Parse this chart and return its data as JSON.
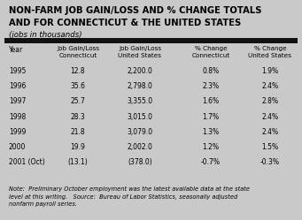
{
  "title_line1": "NON-FARM JOB GAIN/LOSS AND % CHANGE TOTALS",
  "title_line2": "AND FOR CONNECTICUT & THE UNITED STATES",
  "subtitle": "(jobs in thousands)",
  "bg_color": "#c9c9c9",
  "header_bar_color": "#111111",
  "col_headers": [
    "Job Gain/Loss\nConnecticut",
    "Job Gain/Loss\nUnited States",
    "% Change\nConnecticut",
    "% Change\nUnited States"
  ],
  "year_col_header": "Year",
  "years": [
    "1995",
    "1996",
    "1997",
    "1998",
    "1999",
    "2000",
    "2001 (Oct)"
  ],
  "col1": [
    "12.8",
    "35.6",
    "25.7",
    "28.3",
    "21.8",
    "19.9",
    "(13.1)"
  ],
  "col2": [
    "2,200.0",
    "2,798.0",
    "3,355.0",
    "3,015.0",
    "3,079.0",
    "2,002.0",
    "(378.0)"
  ],
  "col3": [
    "0.8%",
    "2.3%",
    "1.6%",
    "1.7%",
    "1.3%",
    "1.2%",
    "-0.7%"
  ],
  "col4": [
    "1.9%",
    "2.4%",
    "2.8%",
    "2.4%",
    "2.4%",
    "1.5%",
    "-0.3%"
  ],
  "note": "Note:  Preliminary October employment was the latest available data at the state\nlevel at this writing.   Source:  Bureau of Labor Statistics, seasonally adjusted\nnonfarm payroll series."
}
